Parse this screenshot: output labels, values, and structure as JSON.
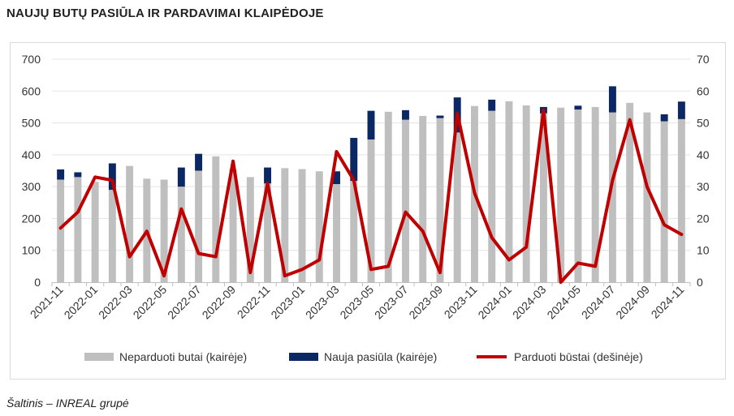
{
  "title": "NAUJŲ BUTŲ PASIŪLA IR PARDAVIMAI KLAIPĖDOJE",
  "source": "Šaltinis – INREAL grupė",
  "colors": {
    "unsold": "#bfbfbf",
    "new_supply": "#0b2865",
    "sold": "#c00000",
    "grid": "#e3e3e3"
  },
  "chart_data": {
    "type": "bar",
    "stacked": true,
    "categories": [
      "2021-11",
      "2021-12",
      "2022-01",
      "2022-02",
      "2022-03",
      "2022-04",
      "2022-05",
      "2022-06",
      "2022-07",
      "2022-08",
      "2022-09",
      "2022-10",
      "2022-11",
      "2022-12",
      "2023-01",
      "2023-02",
      "2023-03",
      "2023-04",
      "2023-05",
      "2023-06",
      "2023-07",
      "2023-08",
      "2023-09",
      "2023-10",
      "2023-11",
      "2023-12",
      "2024-01",
      "2024-02",
      "2024-03",
      "2024-04",
      "2024-05",
      "2024-06",
      "2024-07",
      "2024-08",
      "2024-09",
      "2024-10",
      "2024-11"
    ],
    "x_tick_labels": [
      "2021-11",
      "2022-01",
      "2022-03",
      "2022-05",
      "2022-07",
      "2022-09",
      "2022-11",
      "2023-01",
      "2023-03",
      "2023-05",
      "2023-07",
      "2023-09",
      "2023-11",
      "2024-01",
      "2024-03",
      "2024-05",
      "2024-07",
      "2024-09",
      "2024-11"
    ],
    "series": [
      {
        "name": "Neparduoti butai (kairėje)",
        "axis": "left",
        "kind": "bar",
        "values": [
          322,
          330,
          315,
          290,
          365,
          325,
          322,
          300,
          350,
          395,
          355,
          330,
          310,
          358,
          355,
          348,
          308,
          318,
          448,
          535,
          510,
          522,
          515,
          470,
          553,
          538,
          568,
          555,
          530,
          548,
          542,
          550,
          533,
          563,
          533,
          505,
          512
        ]
      },
      {
        "name": "Nauja pasiūla (kairėje)",
        "axis": "left",
        "kind": "bar",
        "values": [
          32,
          15,
          0,
          83,
          0,
          0,
          0,
          60,
          53,
          0,
          0,
          0,
          50,
          0,
          0,
          0,
          40,
          135,
          90,
          0,
          30,
          0,
          8,
          110,
          0,
          35,
          0,
          0,
          20,
          0,
          12,
          0,
          82,
          0,
          0,
          22,
          55
        ]
      },
      {
        "name": "Parduoti būstai (dešinėje)",
        "axis": "right",
        "kind": "line",
        "values": [
          17,
          22,
          33,
          32,
          8,
          16,
          2,
          23,
          9,
          8,
          38,
          3,
          31,
          2,
          4,
          7,
          41,
          32,
          4,
          5,
          22,
          16,
          3,
          53,
          28,
          14,
          7,
          11,
          54,
          0,
          6,
          5,
          32,
          51,
          30,
          18,
          15
        ]
      }
    ],
    "y_left": {
      "min": 0,
      "max": 700,
      "ticks": [
        0,
        100,
        200,
        300,
        400,
        500,
        600,
        700
      ]
    },
    "y_right": {
      "min": 0,
      "max": 70,
      "ticks": [
        0,
        10,
        20,
        30,
        40,
        50,
        60,
        70
      ]
    },
    "grid": true,
    "legend_position": "bottom"
  }
}
